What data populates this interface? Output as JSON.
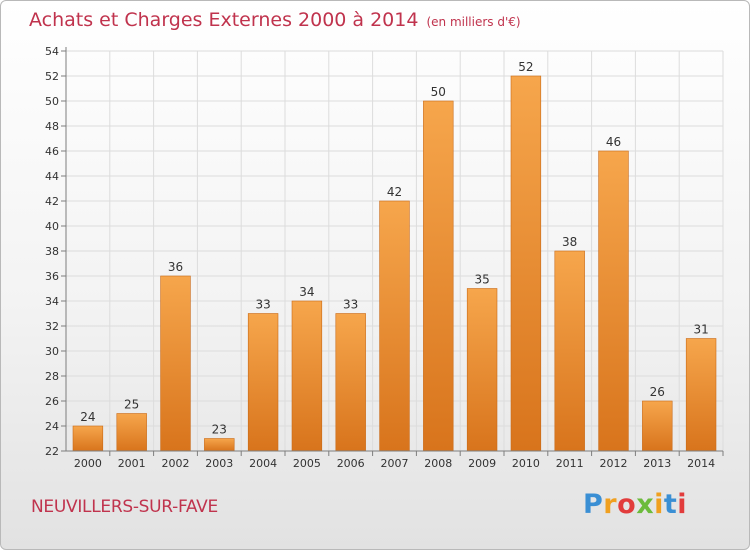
{
  "title": "Achats et Charges Externes 2000 à 2014",
  "unit_note": "(en milliers d'€)",
  "town": "NEUVILLERS-SUR-FAVE",
  "logo": {
    "letters": [
      "P",
      "r",
      "o",
      "x",
      "i",
      "t",
      "i"
    ],
    "colors": [
      "#3a8fd4",
      "#f0a020",
      "#e23c3c",
      "#6cbb3c",
      "#f0a020",
      "#3a8fd4",
      "#e23c3c"
    ]
  },
  "colors": {
    "bar_light": "#f6a64c",
    "bar_dark": "#d8741c",
    "title": "#c0334d",
    "grid": "#dcdcdc",
    "axis": "#7d7d7d"
  },
  "chart_data": {
    "type": "bar",
    "title": "Achats et Charges Externes 2000 à 2014",
    "categories": [
      "2000",
      "2001",
      "2002",
      "2003",
      "2004",
      "2005",
      "2006",
      "2007",
      "2008",
      "2009",
      "2010",
      "2011",
      "2012",
      "2013",
      "2014"
    ],
    "values": [
      24,
      25,
      36,
      23,
      33,
      34,
      33,
      42,
      50,
      35,
      52,
      38,
      46,
      26,
      31
    ],
    "ylim": [
      22,
      54
    ],
    "yticks": [
      22,
      24,
      26,
      28,
      30,
      32,
      34,
      36,
      38,
      40,
      42,
      44,
      46,
      48,
      50,
      52,
      54
    ],
    "grid": true,
    "data_labels": true
  }
}
